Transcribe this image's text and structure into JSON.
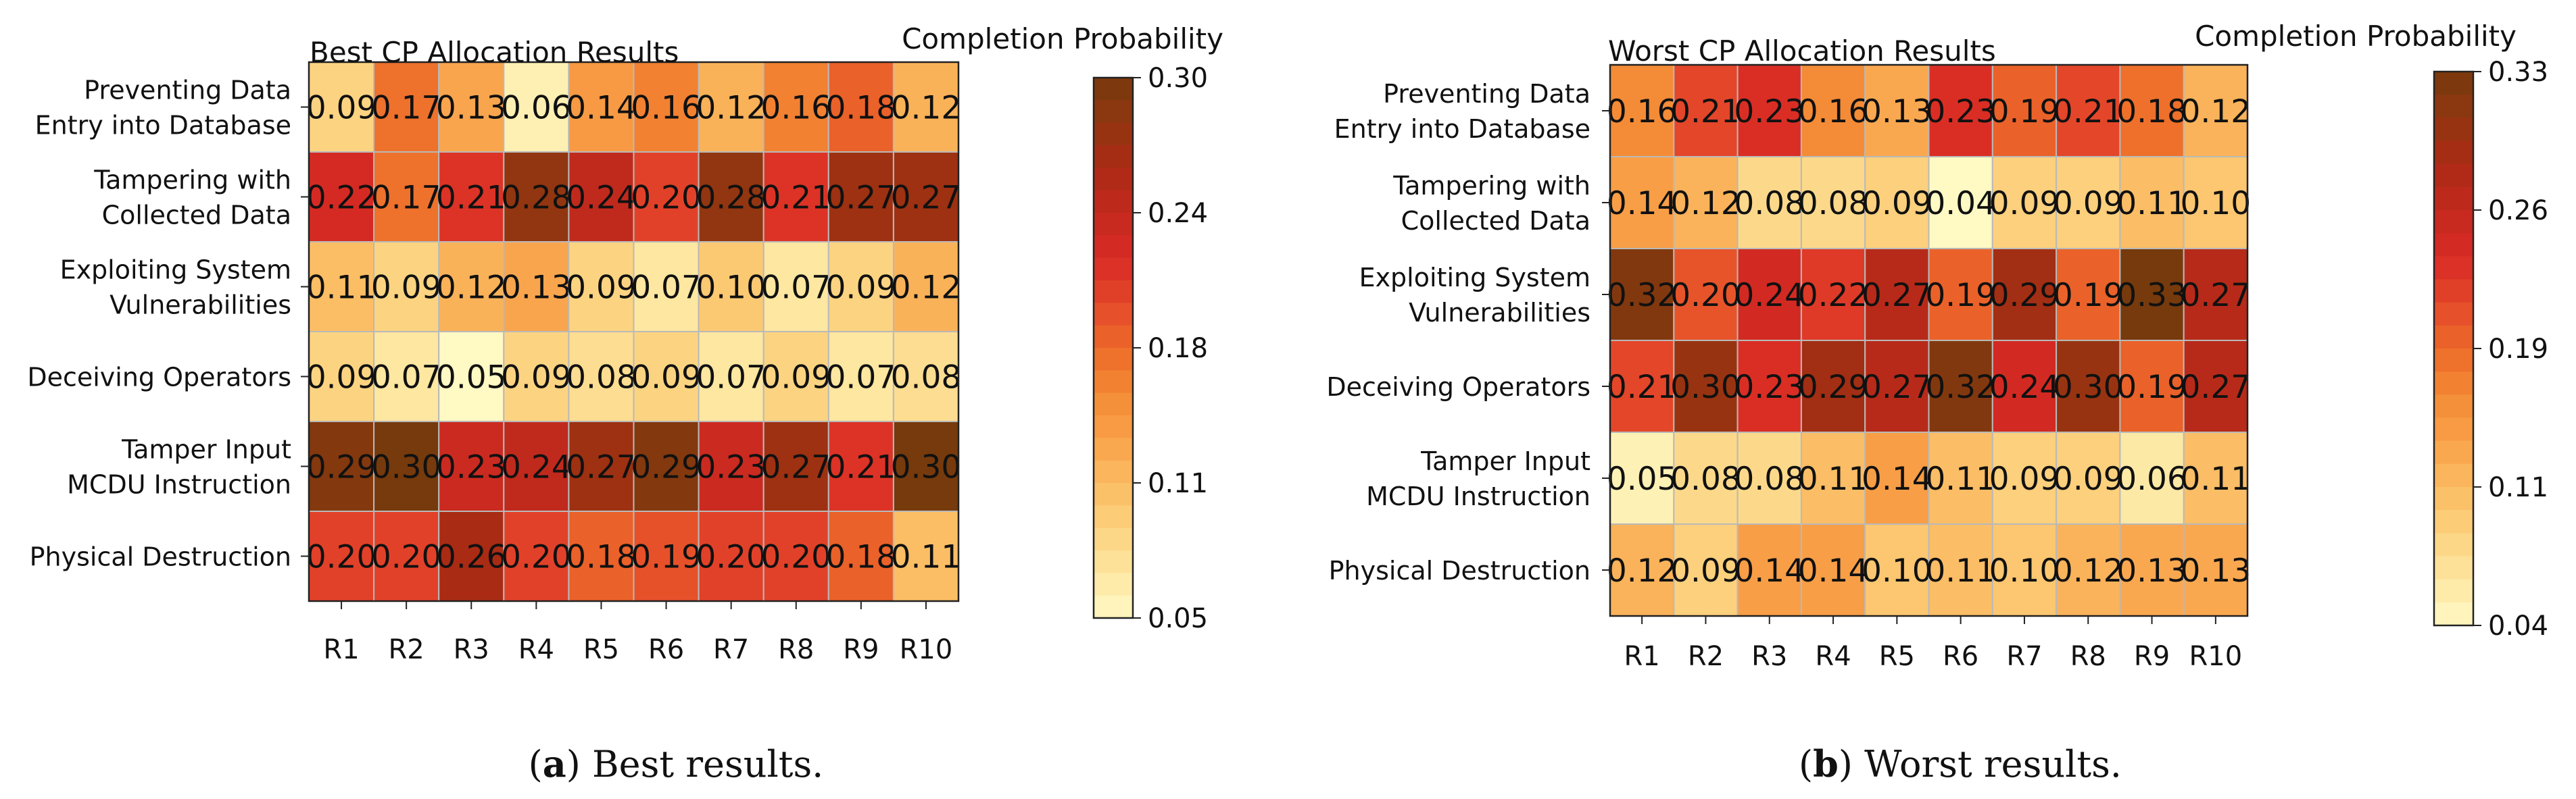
{
  "chart_data": [
    {
      "type": "heatmap",
      "title": "Best CP Allocation Results",
      "colorbar_title": "Completion Probability",
      "categories": [
        "R1",
        "R2",
        "R3",
        "R4",
        "R5",
        "R6",
        "R7",
        "R8",
        "R9",
        "R10"
      ],
      "rows": [
        [
          "Preventing Data",
          "Entry into Database"
        ],
        [
          "Tampering with",
          "Collected Data"
        ],
        [
          "Exploiting System",
          "Vulnerabilities"
        ],
        [
          "Deceiving Operators"
        ],
        [
          "Tamper Input",
          "MCDU Instruction"
        ],
        [
          "Physical Destruction"
        ]
      ],
      "values": [
        [
          0.09,
          0.17,
          0.13,
          0.06,
          0.14,
          0.16,
          0.12,
          0.16,
          0.18,
          0.12
        ],
        [
          0.22,
          0.17,
          0.21,
          0.28,
          0.24,
          0.2,
          0.28,
          0.21,
          0.27,
          0.27
        ],
        [
          0.11,
          0.09,
          0.12,
          0.13,
          0.09,
          0.07,
          0.1,
          0.07,
          0.09,
          0.12
        ],
        [
          0.09,
          0.07,
          0.05,
          0.09,
          0.08,
          0.09,
          0.07,
          0.09,
          0.07,
          0.08
        ],
        [
          0.29,
          0.3,
          0.23,
          0.24,
          0.27,
          0.29,
          0.23,
          0.27,
          0.21,
          0.3
        ],
        [
          0.2,
          0.2,
          0.26,
          0.2,
          0.18,
          0.19,
          0.2,
          0.2,
          0.18,
          0.11
        ]
      ],
      "vmin": 0.05,
      "vmax": 0.3,
      "colorbar_ticks": [
        "0.30",
        "0.24",
        "0.18",
        "0.11",
        "0.05"
      ],
      "caption_label": "a",
      "caption_text": " Best results."
    },
    {
      "type": "heatmap",
      "title": "Worst CP Allocation Results",
      "colorbar_title": "Completion Probability",
      "categories": [
        "R1",
        "R2",
        "R3",
        "R4",
        "R5",
        "R6",
        "R7",
        "R8",
        "R9",
        "R10"
      ],
      "rows": [
        [
          "Preventing Data",
          "Entry into Database"
        ],
        [
          "Tampering with",
          "Collected Data"
        ],
        [
          "Exploiting System",
          "Vulnerabilities"
        ],
        [
          "Deceiving Operators"
        ],
        [
          "Tamper Input",
          "MCDU Instruction"
        ],
        [
          "Physical Destruction"
        ]
      ],
      "values": [
        [
          0.16,
          0.21,
          0.23,
          0.16,
          0.13,
          0.23,
          0.19,
          0.21,
          0.18,
          0.12
        ],
        [
          0.14,
          0.12,
          0.08,
          0.08,
          0.09,
          0.04,
          0.09,
          0.09,
          0.11,
          0.1
        ],
        [
          0.32,
          0.2,
          0.24,
          0.22,
          0.27,
          0.19,
          0.29,
          0.19,
          0.33,
          0.27
        ],
        [
          0.21,
          0.3,
          0.23,
          0.29,
          0.27,
          0.32,
          0.24,
          0.3,
          0.19,
          0.27
        ],
        [
          0.05,
          0.08,
          0.08,
          0.11,
          0.14,
          0.11,
          0.09,
          0.09,
          0.06,
          0.11
        ],
        [
          0.12,
          0.09,
          0.14,
          0.14,
          0.1,
          0.11,
          0.1,
          0.12,
          0.13,
          0.13
        ]
      ],
      "vmin": 0.04,
      "vmax": 0.33,
      "colorbar_ticks": [
        "0.33",
        "0.26",
        "0.19",
        "0.11",
        "0.04"
      ],
      "caption_label": "b",
      "caption_text": " Worst results."
    }
  ],
  "colormap": {
    "name": "YlOrBr-like",
    "stops": [
      "#fff9c4",
      "#fde6a0",
      "#fcd27e",
      "#fbbb62",
      "#f9a149",
      "#f48a35",
      "#ec6929",
      "#e4472a",
      "#d82a24",
      "#c32a1e",
      "#ab2a14",
      "#923610",
      "#763a0c"
    ]
  }
}
